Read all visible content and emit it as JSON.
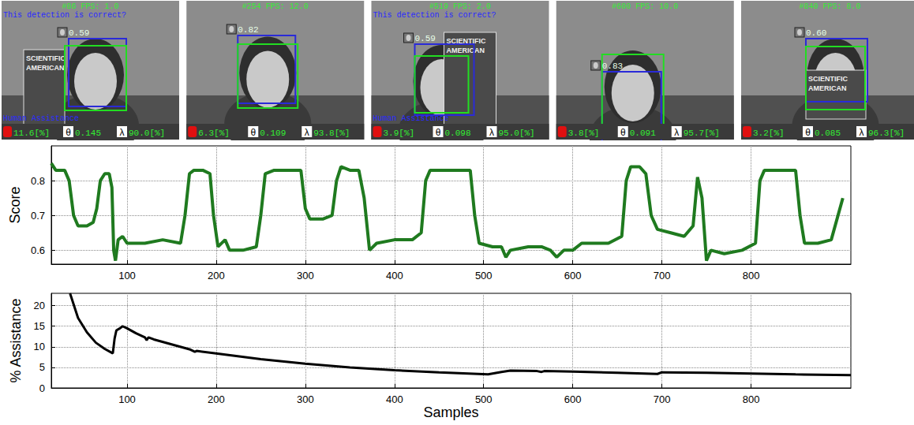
{
  "frames": [
    {
      "header": "#86 FPS: 1.0",
      "prompt": "This detection is correct?",
      "score": "0.59",
      "status": "Human Assistance",
      "book": "SCIENTIFIC AMERICAN",
      "hand": "11.6[%]",
      "theta": "0.145",
      "lambda": "90.0[%]"
    },
    {
      "header": "#254 FPS: 12.0",
      "score": "0.82",
      "hand": "6.3[%]",
      "theta": "0.109",
      "lambda": "93.8[%]"
    },
    {
      "header": "#519 FPS: 2.0",
      "prompt": "This detection is correct?",
      "score": "0.59",
      "status": "Human Assistance",
      "book": "SCIENTIFIC AMERICAN",
      "hand": "3.9[%]",
      "theta": "0.098",
      "lambda": "95.0[%]"
    },
    {
      "header": "#600 FPS: 10.0",
      "score": "0.83",
      "hand": "3.8[%]",
      "theta": "0.091",
      "lambda": "95.7[%]"
    },
    {
      "header": "#840 FPS: 8.0",
      "score": "0.60",
      "book": "SCIENTIFIC AMERICAN",
      "hand": "3.2[%]",
      "theta": "0.085",
      "lambda": "96.3[%]"
    }
  ],
  "symbols": {
    "theta": "θ",
    "lambda": "λ"
  },
  "chart_data": [
    {
      "type": "line",
      "y_label": "Score",
      "color": "#1f7a1f",
      "grid": true,
      "xlim": [
        15,
        912
      ],
      "xticks": [
        100,
        200,
        300,
        400,
        500,
        600,
        700,
        800
      ],
      "ylim": [
        0.56,
        0.9
      ],
      "yticks": [
        0.6,
        0.7,
        0.8
      ],
      "x": [
        15,
        20,
        30,
        35,
        40,
        45,
        55,
        62,
        66,
        70,
        75,
        80,
        83,
        85,
        87,
        90,
        95,
        100,
        120,
        140,
        160,
        165,
        170,
        175,
        185,
        193,
        197,
        202,
        210,
        215,
        230,
        245,
        250,
        255,
        265,
        280,
        295,
        300,
        305,
        320,
        330,
        335,
        340,
        350,
        360,
        366,
        372,
        380,
        400,
        420,
        430,
        435,
        440,
        460,
        485,
        490,
        495,
        510,
        520,
        525,
        530,
        550,
        565,
        575,
        582,
        590,
        600,
        610,
        640,
        655,
        660,
        665,
        675,
        682,
        688,
        695,
        710,
        725,
        735,
        740,
        745,
        750,
        755,
        770,
        790,
        805,
        810,
        815,
        835,
        850,
        855,
        860,
        875,
        890,
        903
      ],
      "values": [
        0.85,
        0.83,
        0.83,
        0.8,
        0.7,
        0.67,
        0.67,
        0.68,
        0.72,
        0.8,
        0.82,
        0.82,
        0.78,
        0.6,
        0.57,
        0.63,
        0.64,
        0.62,
        0.62,
        0.63,
        0.62,
        0.7,
        0.82,
        0.83,
        0.83,
        0.82,
        0.7,
        0.61,
        0.63,
        0.6,
        0.6,
        0.61,
        0.7,
        0.82,
        0.83,
        0.83,
        0.83,
        0.72,
        0.69,
        0.69,
        0.7,
        0.8,
        0.84,
        0.83,
        0.83,
        0.75,
        0.6,
        0.62,
        0.63,
        0.63,
        0.65,
        0.8,
        0.83,
        0.83,
        0.83,
        0.7,
        0.62,
        0.61,
        0.61,
        0.58,
        0.6,
        0.61,
        0.61,
        0.6,
        0.58,
        0.6,
        0.6,
        0.62,
        0.62,
        0.64,
        0.8,
        0.84,
        0.84,
        0.82,
        0.7,
        0.66,
        0.65,
        0.64,
        0.67,
        0.81,
        0.75,
        0.57,
        0.6,
        0.59,
        0.6,
        0.62,
        0.8,
        0.83,
        0.83,
        0.83,
        0.7,
        0.62,
        0.62,
        0.63,
        0.75
      ]
    },
    {
      "type": "line",
      "x_label": "Samples",
      "y_label": "% Assistance",
      "color": "#000000",
      "grid": true,
      "xlim": [
        15,
        912
      ],
      "xticks": [
        100,
        200,
        300,
        400,
        500,
        600,
        700,
        800
      ],
      "ylim": [
        0,
        23
      ],
      "yticks": [
        0,
        5,
        10,
        15,
        20
      ],
      "x": [
        36,
        45,
        55,
        65,
        75,
        84,
        86,
        88,
        92,
        95,
        100,
        110,
        120,
        122,
        124,
        130,
        150,
        170,
        176,
        178,
        200,
        250,
        300,
        350,
        400,
        450,
        505,
        520,
        530,
        560,
        565,
        568,
        600,
        650,
        695,
        700,
        750,
        800,
        850,
        912
      ],
      "values": [
        23,
        17,
        13.5,
        11,
        9.5,
        8.4,
        12,
        14,
        14.5,
        15,
        14.5,
        13.3,
        12.3,
        11.6,
        12.3,
        11.8,
        10.6,
        9.4,
        8.8,
        9,
        8.4,
        7,
        5.9,
        5,
        4.3,
        3.8,
        3.3,
        3.9,
        4.2,
        4.1,
        3.9,
        4.1,
        4,
        3.7,
        3.4,
        3.8,
        3.7,
        3.5,
        3.3,
        3.1
      ]
    }
  ]
}
